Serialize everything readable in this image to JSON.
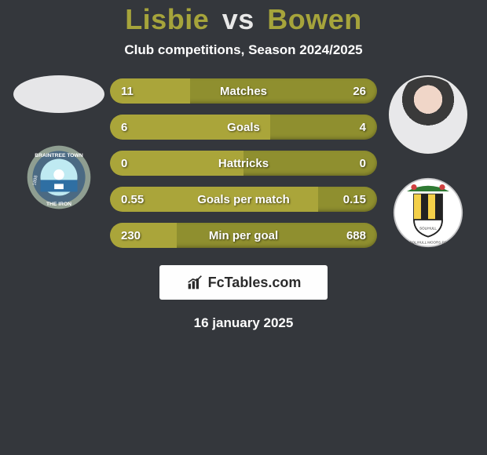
{
  "title": {
    "p1": "Lisbie",
    "vs": "vs",
    "p2": "Bowen"
  },
  "subtitle": "Club competitions, Season 2024/2025",
  "date": "16 january 2025",
  "watermark": "FcTables.com",
  "colors": {
    "bg": "#34373c",
    "bar_base": "#8f8f2f",
    "bar_fill": "#aaa53a",
    "accent": "#a6a43b"
  },
  "bars": [
    {
      "left": "11",
      "center": "Matches",
      "right": "26",
      "fill_pct": 30
    },
    {
      "left": "6",
      "center": "Goals",
      "right": "4",
      "fill_pct": 60
    },
    {
      "left": "0",
      "center": "Hattricks",
      "right": "0",
      "fill_pct": 50
    },
    {
      "left": "0.55",
      "center": "Goals per match",
      "right": "0.15",
      "fill_pct": 78
    },
    {
      "left": "230",
      "center": "Min per goal",
      "right": "688",
      "fill_pct": 25
    }
  ],
  "left_club": {
    "name": "Braintree Town FC",
    "motto": "THE IRON",
    "year": "1898",
    "ring": "#8f9e91",
    "text": "#ffffff",
    "inner_sky": "#bfeaf2",
    "inner_ground": "#2f6fa3"
  },
  "right_club": {
    "name": "Solihull Moors FC",
    "bg": "#ffffff",
    "shield_stripes": [
      "#f4d049",
      "#222222"
    ],
    "border": "#c7c7c9",
    "leaves": "#2f7a33"
  }
}
